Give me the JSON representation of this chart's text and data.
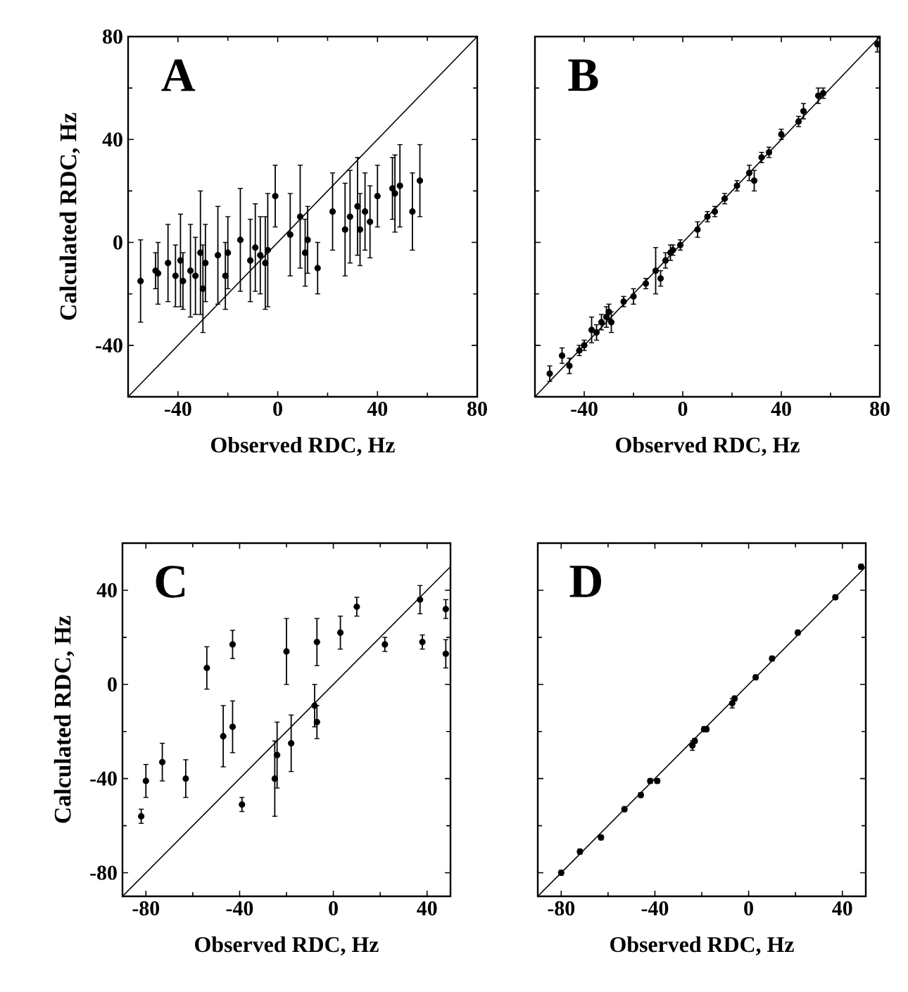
{
  "chart_data": [
    {
      "type": "scatter",
      "xlabel": "Observed RDC, Hz",
      "ylabel": "Calculated RDC, Hz",
      "annotations": [
        "A"
      ],
      "xlim": [
        -60,
        80
      ],
      "ylim": [
        -60,
        80
      ],
      "xticks": [
        -40,
        0,
        40,
        80
      ],
      "yticks": [
        -40,
        0,
        40,
        80
      ],
      "series": [
        {
          "marker": "circle",
          "color": "#000000",
          "x": [
            -55,
            -49,
            -48,
            -44,
            -41,
            -39,
            -38,
            -35,
            -33,
            -31,
            -30,
            -29,
            -24,
            -21,
            -20,
            -15,
            -11,
            -9,
            -7,
            -5,
            -4,
            -1,
            5,
            9,
            11,
            12,
            16,
            22,
            27,
            29,
            32,
            33,
            35,
            37,
            40,
            46,
            47,
            49,
            54,
            57
          ],
          "values": [
            -15,
            -11,
            -12,
            -8,
            -13,
            -7,
            -15,
            -11,
            -13,
            -4,
            -18,
            -8,
            -5,
            -13,
            -4,
            1,
            -7,
            -2,
            -5,
            -8,
            -3,
            18,
            3,
            10,
            -4,
            1,
            -10,
            12,
            5,
            10,
            14,
            5,
            12,
            8,
            18,
            21,
            19,
            22,
            12,
            24
          ],
          "errors": [
            16,
            7,
            12,
            15,
            12,
            18,
            11,
            18,
            15,
            24,
            17,
            15,
            19,
            13,
            14,
            20,
            16,
            17,
            15,
            18,
            22,
            12,
            16,
            20,
            13,
            13,
            10,
            15,
            18,
            18,
            19,
            14,
            15,
            14,
            12,
            12,
            15,
            16,
            15,
            14
          ]
        },
        {
          "type": "line",
          "color": "#000000",
          "x": [
            -60,
            80
          ],
          "values": [
            -60,
            80
          ]
        }
      ]
    },
    {
      "type": "scatter",
      "xlabel": "Observed RDC, Hz",
      "annotations": [
        "B"
      ],
      "xlim": [
        -60,
        80
      ],
      "ylim": [
        -60,
        80
      ],
      "xticks": [
        -40,
        0,
        40,
        80
      ],
      "yticks": [
        -40,
        0,
        40,
        80
      ],
      "tick_labels": "x",
      "series": [
        {
          "marker": "circle",
          "color": "#000000",
          "x": [
            -54,
            -49,
            -46,
            -42,
            -40,
            -37,
            -35,
            -33,
            -31,
            -30,
            -29,
            -24,
            -20,
            -15,
            -11,
            -9,
            -7,
            -5,
            -4,
            -1,
            6,
            10,
            13,
            17,
            22,
            27,
            29,
            32,
            35,
            40,
            47,
            49,
            55,
            57,
            79
          ],
          "values": [
            -51,
            -44,
            -48,
            -42,
            -40,
            -34,
            -35,
            -31,
            -29,
            -27,
            -31,
            -23,
            -21,
            -16,
            -11,
            -14,
            -7,
            -4,
            -3,
            -1,
            5,
            10,
            12,
            17,
            22,
            27,
            24,
            33,
            35,
            42,
            47,
            51,
            57,
            58,
            77
          ],
          "errors": [
            3,
            3,
            3,
            2,
            2,
            5,
            3,
            3,
            4,
            3,
            4,
            2,
            3,
            2,
            9,
            3,
            3,
            3,
            2,
            2,
            3,
            2,
            2,
            2,
            2,
            3,
            4,
            2,
            2,
            2,
            2,
            3,
            3,
            2,
            3
          ]
        },
        {
          "type": "line",
          "color": "#000000",
          "x": [
            -60,
            80
          ],
          "values": [
            -60,
            80
          ]
        }
      ]
    },
    {
      "type": "scatter",
      "xlabel": "Observed RDC, Hz",
      "ylabel": "Calculated RDC, Hz",
      "annotations": [
        "C"
      ],
      "xlim": [
        -90,
        50
      ],
      "ylim": [
        -90,
        60
      ],
      "xticks": [
        -80,
        -40,
        0,
        40
      ],
      "yticks": [
        -80,
        -40,
        0,
        40
      ],
      "series": [
        {
          "marker": "circle",
          "color": "#000000",
          "x": [
            -82,
            -80,
            -73,
            -63,
            -54,
            -47,
            -43,
            -43,
            -39,
            -25,
            -24,
            -20,
            -18,
            -8,
            -7,
            -7,
            3,
            10,
            22,
            37,
            38,
            48,
            48
          ],
          "values": [
            -56,
            -41,
            -33,
            -40,
            7,
            -22,
            17,
            -18,
            -51,
            -40,
            -30,
            14,
            -25,
            -9,
            -16,
            18,
            22,
            33,
            17,
            36,
            18,
            32,
            13
          ],
          "errors": [
            3,
            7,
            8,
            8,
            9,
            13,
            6,
            11,
            3,
            16,
            14,
            14,
            12,
            9,
            7,
            10,
            7,
            4,
            3,
            6,
            3,
            4,
            6
          ]
        },
        {
          "type": "line",
          "color": "#000000",
          "x": [
            -90,
            50
          ],
          "values": [
            -90,
            50
          ]
        }
      ]
    },
    {
      "type": "scatter",
      "xlabel": "Observed RDC, Hz",
      "annotations": [
        "D"
      ],
      "xlim": [
        -90,
        50
      ],
      "ylim": [
        -90,
        60
      ],
      "xticks": [
        -80,
        -40,
        0,
        40
      ],
      "yticks": [
        -80,
        -40,
        0,
        40
      ],
      "tick_labels": "x",
      "series": [
        {
          "marker": "circle",
          "color": "#000000",
          "x": [
            -80,
            -72,
            -63,
            -53,
            -46,
            -42,
            -39,
            -24,
            -23,
            -19,
            -18,
            -7,
            -6,
            3,
            10,
            21,
            37,
            48
          ],
          "values": [
            -80,
            -71,
            -65,
            -53,
            -47,
            -41,
            -41,
            -26,
            -24,
            -19,
            -19,
            -8,
            -6,
            3,
            11,
            22,
            37,
            50
          ],
          "errors": [
            1,
            1,
            1,
            1,
            1,
            1,
            1,
            2,
            1,
            1,
            1,
            2,
            1,
            1,
            1,
            1,
            1,
            1
          ]
        },
        {
          "type": "line",
          "color": "#000000",
          "x": [
            -90,
            50
          ],
          "values": [
            -90,
            50
          ]
        }
      ]
    }
  ]
}
